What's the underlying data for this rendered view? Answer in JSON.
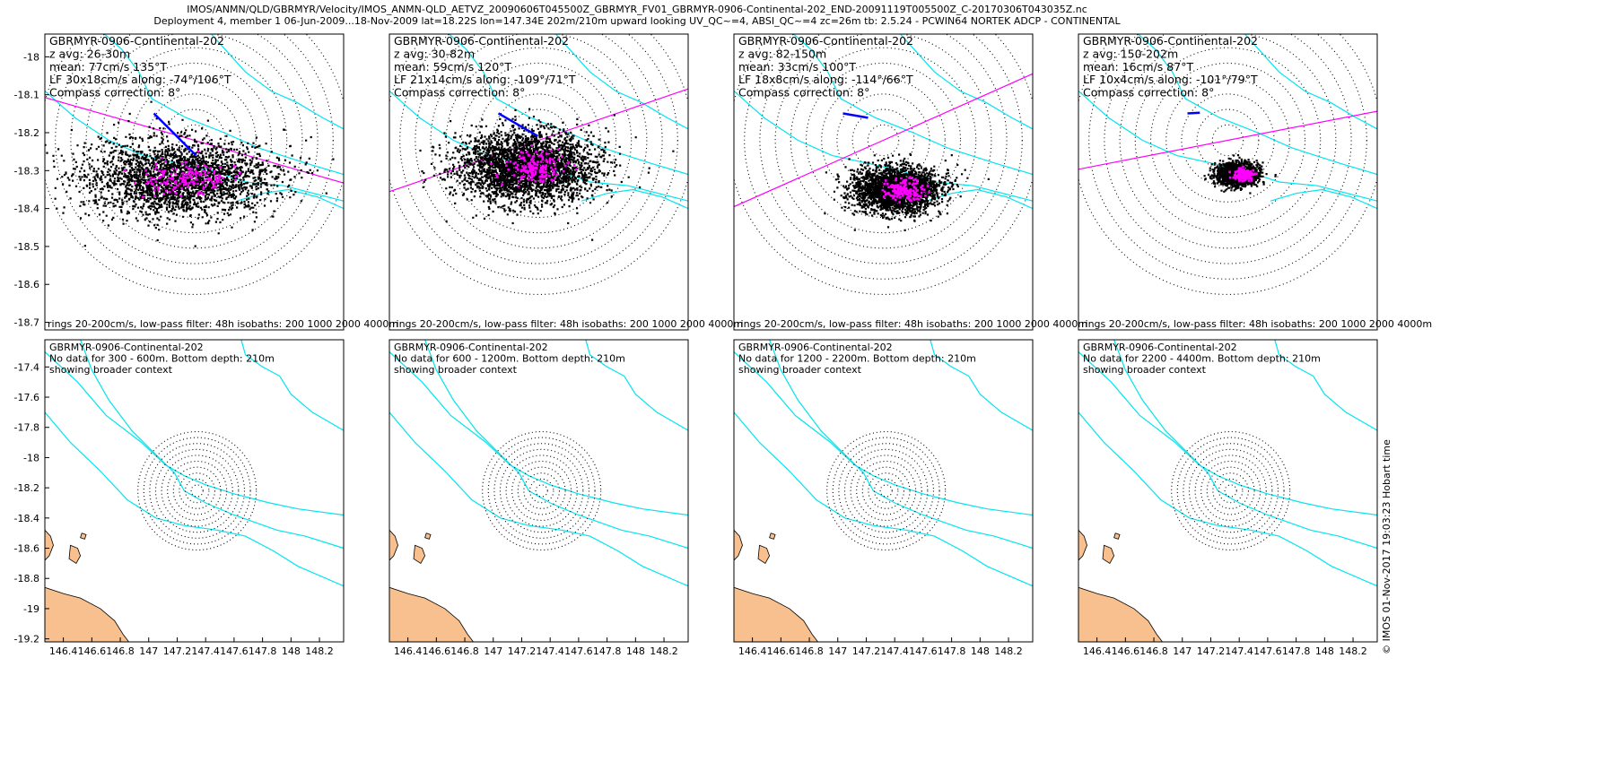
{
  "header": {
    "line1": "IMOS/ANMN/QLD/GBRMYR/Velocity/IMOS_ANMN-QLD_AETVZ_20090606T045500Z_GBRMYR_FV01_GBRMYR-0906-Continental-202_END-20091119T005500Z_C-20170306T043035Z.nc",
    "line2": "Deployment 4, member 1 06-Jun-2009...18-Nov-2009 lat=18.22S lon=147.34E 202m/210m upward looking UV_QC~=4, ABSI_QC~=4 zc=26m tb: 2.5.24 - PCWIN64 NORTEK ADCP - CONTINENTAL"
  },
  "side_stamp": "© IMOS 01-Nov-2017 19:03:23 Hobart time",
  "colors": {
    "isobath": "#00e5ee",
    "principal_axis": "#ff00ff",
    "raw_points": "#000000",
    "lowpass_points": "#ff00ff",
    "mean_vector": "#0000ff",
    "land": "#f7c08e"
  },
  "chart_data": [
    {
      "type": "scatter",
      "title_lines": [
        "GBRMYR-0906-Continental-202",
        "z avg: 26-30m",
        "mean: 77cm/s 135°T",
        "LF 30x18cm/s along: -74°/106°T",
        "Compass correction: 8°"
      ],
      "footer": "rings 20-200cm/s, low-pass filter: 48h isobaths: 200 1000 2000 4000m",
      "y_ticks": [
        "-18",
        "-18.1",
        "-18.2",
        "-18.3",
        "-18.4",
        "-18.5",
        "-18.6",
        "-18.7"
      ],
      "ylim": [
        -18.72,
        -17.94
      ],
      "center": [
        147.34,
        -18.22
      ],
      "cloud": {
        "offset_deg": [
          -0.04,
          -0.1
        ],
        "spread_deg": [
          0.22,
          0.1
        ],
        "n": 2600
      },
      "mean_speed_cms": 77,
      "mean_dir_degT": 135,
      "lf_ellipse_cms": [
        30,
        18
      ],
      "along_axis_degT": 106
    },
    {
      "type": "scatter",
      "title_lines": [
        "GBRMYR-0906-Continental-202",
        "z avg: 30-82m",
        "mean: 59cm/s 120°T",
        "LF 21x14cm/s along: -109°/71°T",
        "Compass correction: 8°"
      ],
      "footer": "rings 20-200cm/s, low-pass filter: 48h isobaths: 200 1000 2000 4000m",
      "y_ticks": [],
      "center": [
        147.34,
        -18.22
      ],
      "cloud": {
        "offset_deg": [
          -0.03,
          -0.07
        ],
        "spread_deg": [
          0.16,
          0.09
        ],
        "n": 3200
      },
      "mean_speed_cms": 59,
      "mean_dir_degT": 120,
      "lf_ellipse_cms": [
        21,
        14
      ],
      "along_axis_degT": 71
    },
    {
      "type": "scatter",
      "title_lines": [
        "GBRMYR-0906-Continental-202",
        "z avg: 82-150m",
        "mean: 33cm/s 100°T",
        "LF 18x8cm/s along: -114°/66°T",
        "Compass correction: 8°"
      ],
      "footer": "rings 20-200cm/s, low-pass filter: 48h isobaths: 200 1000 2000 4000m",
      "y_ticks": [],
      "center": [
        147.34,
        -18.22
      ],
      "cloud": {
        "offset_deg": [
          0.03,
          -0.13
        ],
        "spread_deg": [
          0.1,
          0.06
        ],
        "n": 2600
      },
      "mean_speed_cms": 33,
      "mean_dir_degT": 100,
      "lf_ellipse_cms": [
        18,
        8
      ],
      "along_axis_degT": 66
    },
    {
      "type": "scatter",
      "title_lines": [
        "GBRMYR-0906-Continental-202",
        "z avg: 150-202m",
        "mean: 16cm/s 87°T",
        "LF 10x4cm/s along: -101°/79°T",
        "Compass correction: 8°"
      ],
      "footer": "rings 20-200cm/s, low-pass filter: 48h isobaths: 200 1000 2000 4000m",
      "y_ticks": [],
      "center": [
        147.34,
        -18.22
      ],
      "cloud": {
        "offset_deg": [
          0.02,
          -0.09
        ],
        "spread_deg": [
          0.05,
          0.03
        ],
        "n": 1500
      },
      "mean_speed_cms": 16,
      "mean_dir_degT": 87,
      "lf_ellipse_cms": [
        10,
        4
      ],
      "along_axis_degT": 79
    },
    {
      "type": "map",
      "title_lines": [
        "GBRMYR-0906-Continental-202",
        "No data for 300 - 600m. Bottom depth: 210m",
        "showing broader context"
      ],
      "y_ticks": [
        "-17.4",
        "-17.6",
        "-17.8",
        "-18",
        "-18.2",
        "-18.4",
        "-18.6",
        "-18.8",
        "-19",
        "-19.2"
      ],
      "x_ticks": [
        "146.4",
        "146.6",
        "146.8",
        "147",
        "147.2",
        "147.4",
        "147.6",
        "147.8",
        "148",
        "148.2"
      ],
      "xlim": [
        146.27,
        148.37
      ],
      "ylim": [
        -19.22,
        -17.22
      ]
    },
    {
      "type": "map",
      "title_lines": [
        "GBRMYR-0906-Continental-202",
        "No data for 600 - 1200m. Bottom depth: 210m",
        "showing broader context"
      ],
      "y_ticks": [],
      "x_ticks": [
        "146.4",
        "146.6",
        "146.8",
        "147",
        "147.2",
        "147.4",
        "147.6",
        "147.8",
        "148",
        "148.2"
      ],
      "xlim": [
        146.27,
        148.37
      ],
      "ylim": [
        -19.22,
        -17.22
      ]
    },
    {
      "type": "map",
      "title_lines": [
        "GBRMYR-0906-Continental-202",
        "No data for 1200 - 2200m. Bottom depth: 210m",
        "showing broader context"
      ],
      "y_ticks": [],
      "x_ticks": [
        "146.4",
        "146.6",
        "146.8",
        "147",
        "147.2",
        "147.4",
        "147.6",
        "147.8",
        "148",
        "148.2"
      ],
      "xlim": [
        146.27,
        148.37
      ],
      "ylim": [
        -19.22,
        -17.22
      ]
    },
    {
      "type": "map",
      "title_lines": [
        "GBRMYR-0906-Continental-202",
        "No data for 2200 - 4400m. Bottom depth: 210m",
        "showing broader context"
      ],
      "y_ticks": [],
      "x_ticks": [
        "146.4",
        "146.6",
        "146.8",
        "147",
        "147.2",
        "147.4",
        "147.6",
        "147.8",
        "148",
        "148.2"
      ],
      "xlim": [
        146.27,
        148.37
      ],
      "ylim": [
        -19.22,
        -17.22
      ]
    }
  ]
}
